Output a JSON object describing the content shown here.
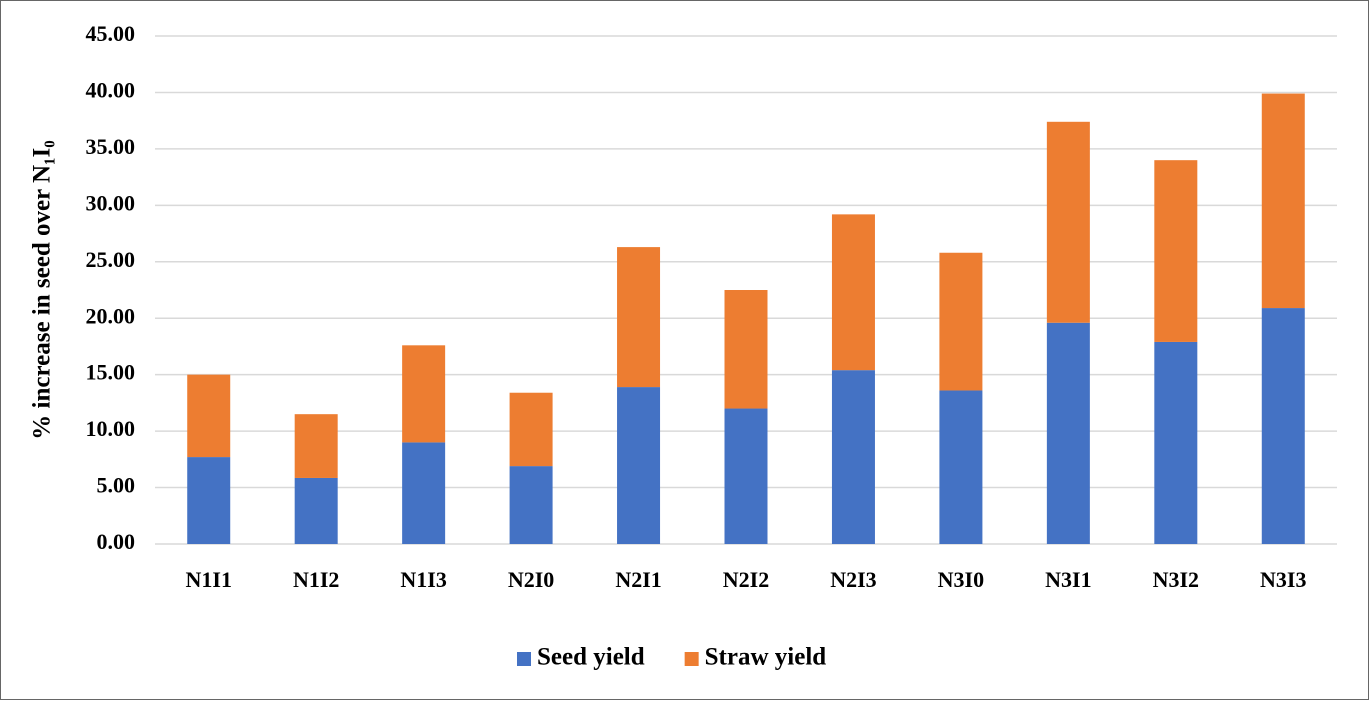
{
  "chart_data": {
    "type": "stacked_bar",
    "y_label": "% increase in seed over N₁I₀",
    "categories": [
      "N1I1",
      "N1I2",
      "N1I3",
      "N2I0",
      "N2I1",
      "N2I2",
      "N2I3",
      "N3I0",
      "N3I1",
      "N3I2",
      "N3I3"
    ],
    "series": [
      {
        "name": "Seed yield",
        "color": "#4472c4",
        "values": [
          7.7,
          5.85,
          9.0,
          6.9,
          13.9,
          12.0,
          15.4,
          13.6,
          19.6,
          17.9,
          20.9
        ]
      },
      {
        "name": "Straw yield",
        "color": "#ed7d31",
        "values": [
          7.3,
          5.65,
          8.6,
          6.5,
          12.4,
          10.5,
          13.8,
          12.2,
          17.8,
          16.1,
          19.0
        ]
      }
    ],
    "ylim": [
      0,
      45
    ],
    "yticks": [
      {
        "value": 0,
        "label": "0.00"
      },
      {
        "value": 5,
        "label": "5.00"
      },
      {
        "value": 10,
        "label": "10.00"
      },
      {
        "value": 15,
        "label": "15.00"
      },
      {
        "value": 20,
        "label": "20.00"
      },
      {
        "value": 25,
        "label": "25.00"
      },
      {
        "value": 30,
        "label": "30.00"
      },
      {
        "value": 35,
        "label": "35.00"
      },
      {
        "value": 40,
        "label": "40.00"
      },
      {
        "value": 45,
        "label": "45.00"
      }
    ],
    "grid": true,
    "legend": "bottom"
  }
}
